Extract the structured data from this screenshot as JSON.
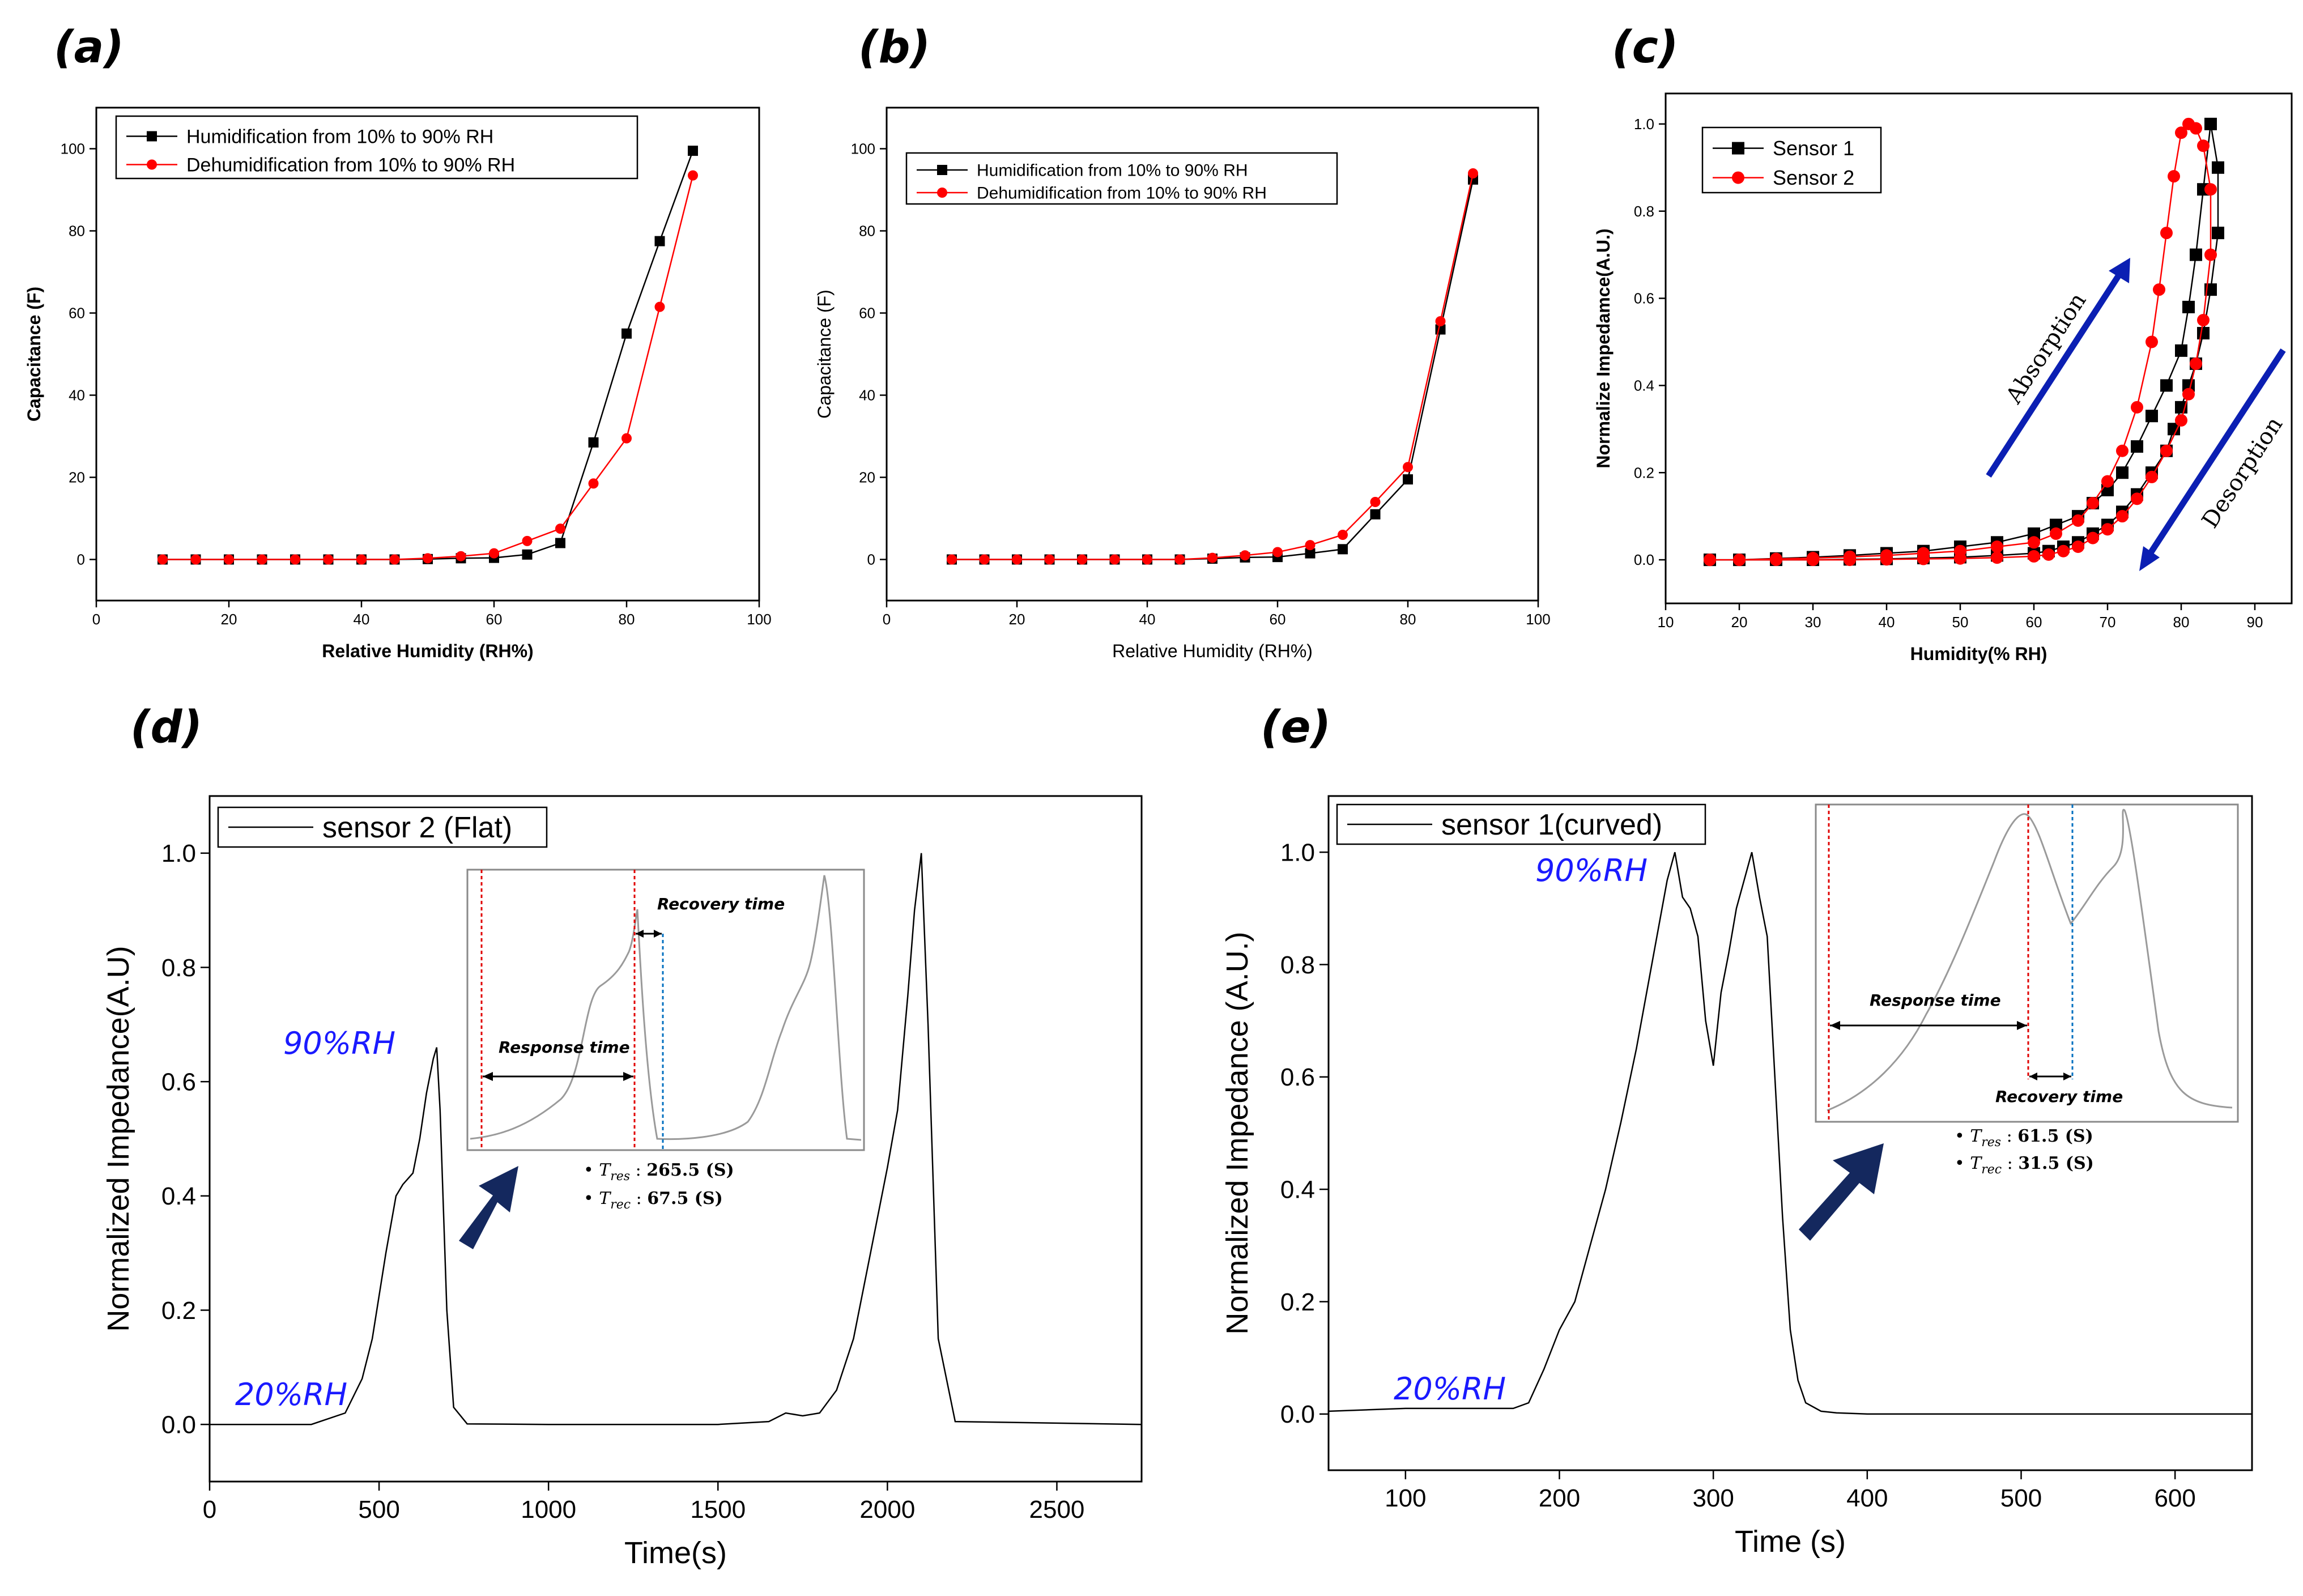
{
  "chart_data": [
    {
      "id": "a",
      "panel_label": "(a)",
      "type": "line",
      "xlabel": "Relative Humidity (RH%)",
      "ylabel": "Capacitance (F)",
      "xlim": [
        0,
        100
      ],
      "ylim": [
        -10,
        110
      ],
      "xticks": [
        "0",
        "20",
        "40",
        "60",
        "80",
        "100"
      ],
      "yticks": [
        "0",
        "20",
        "40",
        "60",
        "80",
        "100"
      ],
      "x": [
        10,
        15,
        20,
        25,
        30,
        35,
        40,
        45,
        50,
        55,
        60,
        65,
        70,
        75,
        80,
        85,
        90
      ],
      "series": [
        {
          "name": "Humidification from 10% to 90% RH",
          "color": "#000000",
          "marker": "square",
          "values": [
            0,
            0,
            0,
            0,
            0,
            0,
            0,
            0,
            0.1,
            0.3,
            0.4,
            1.2,
            4,
            28.5,
            55,
            77.5,
            99.5
          ]
        },
        {
          "name": "Dehumidification from 10% to 90% RH",
          "color": "#ff0000",
          "marker": "circle",
          "values": [
            0,
            0,
            0,
            0,
            0,
            0,
            0,
            0,
            0.3,
            0.8,
            1.5,
            4.5,
            7.5,
            18.5,
            29.5,
            61.5,
            93.5
          ]
        }
      ]
    },
    {
      "id": "b",
      "panel_label": "(b)",
      "type": "line",
      "xlabel": "Relative Humidity (RH%)",
      "ylabel": "Capacitance (F)",
      "xlim": [
        0,
        100
      ],
      "ylim": [
        -10,
        110
      ],
      "xticks": [
        "0",
        "20",
        "40",
        "60",
        "80",
        "100"
      ],
      "yticks": [
        "0",
        "20",
        "40",
        "60",
        "80",
        "100"
      ],
      "x": [
        10,
        15,
        20,
        25,
        30,
        35,
        40,
        45,
        50,
        55,
        60,
        65,
        70,
        75,
        80,
        85,
        90
      ],
      "series": [
        {
          "name": "Humidification from 10% to 90% RH",
          "color": "#000000",
          "marker": "square",
          "values": [
            0,
            0,
            0,
            0,
            0,
            0,
            0,
            0,
            0.2,
            0.5,
            0.6,
            1.5,
            2.5,
            11,
            19.5,
            56,
            92.5
          ]
        },
        {
          "name": "Dehumidification from 10% to 90% RH",
          "color": "#ff0000",
          "marker": "circle",
          "values": [
            0,
            0,
            0,
            0,
            0,
            0,
            0,
            0,
            0.4,
            1,
            1.8,
            3.5,
            6,
            14,
            22.5,
            58,
            94
          ]
        }
      ]
    },
    {
      "id": "c",
      "panel_label": "(c)",
      "type": "scatter",
      "xlabel": "Humidity(% RH)",
      "ylabel": "Normalize Impedamce(A.U.)",
      "xlim": [
        10,
        95
      ],
      "ylim": [
        -0.1,
        1.07
      ],
      "xticks": [
        "10",
        "20",
        "30",
        "40",
        "50",
        "60",
        "70",
        "80",
        "90"
      ],
      "yticks": [
        "0.0",
        "0.2",
        "0.4",
        "0.6",
        "0.8",
        "1.0"
      ],
      "series": [
        {
          "name": "Sensor 1",
          "color": "#000000",
          "marker": "square",
          "x": [
            16,
            20,
            25,
            30,
            35,
            40,
            45,
            50,
            55,
            60,
            63,
            66,
            68,
            70,
            72,
            74,
            76,
            78,
            80,
            81,
            82,
            83,
            84,
            85,
            85,
            84,
            83,
            82,
            81,
            80,
            79,
            78,
            76,
            74,
            72,
            70,
            68,
            66,
            64,
            62,
            60,
            55,
            50,
            45,
            40,
            35,
            30,
            25,
            20,
            16
          ],
          "y": [
            0,
            0,
            0.003,
            0.006,
            0.01,
            0.015,
            0.02,
            0.03,
            0.04,
            0.06,
            0.08,
            0.1,
            0.13,
            0.16,
            0.2,
            0.26,
            0.33,
            0.4,
            0.48,
            0.58,
            0.7,
            0.85,
            1.0,
            0.9,
            0.75,
            0.62,
            0.52,
            0.45,
            0.4,
            0.35,
            0.3,
            0.25,
            0.2,
            0.15,
            0.11,
            0.08,
            0.06,
            0.04,
            0.03,
            0.02,
            0.015,
            0.01,
            0.006,
            0.004,
            0.002,
            0.001,
            0,
            0,
            0,
            0
          ]
        },
        {
          "name": "Sensor 2",
          "color": "#ff0000",
          "marker": "circle",
          "x": [
            16,
            20,
            25,
            30,
            35,
            40,
            45,
            50,
            55,
            60,
            63,
            66,
            68,
            70,
            72,
            74,
            76,
            77,
            78,
            79,
            80,
            81,
            82,
            83,
            84,
            84,
            83,
            82,
            81,
            80,
            78,
            76,
            74,
            72,
            70,
            68,
            66,
            64,
            62,
            60,
            55,
            50,
            45,
            40,
            35,
            30,
            25,
            20,
            16
          ],
          "y": [
            0,
            0,
            0.002,
            0.004,
            0.007,
            0.01,
            0.015,
            0.02,
            0.03,
            0.04,
            0.06,
            0.09,
            0.13,
            0.18,
            0.25,
            0.35,
            0.5,
            0.62,
            0.75,
            0.88,
            0.98,
            1.0,
            0.99,
            0.95,
            0.85,
            0.7,
            0.55,
            0.45,
            0.38,
            0.32,
            0.25,
            0.19,
            0.14,
            0.1,
            0.07,
            0.05,
            0.03,
            0.02,
            0.012,
            0.008,
            0.005,
            0.003,
            0.002,
            0.001,
            0,
            0,
            0,
            0,
            0
          ]
        }
      ],
      "annotations": {
        "absorption": "Absorption",
        "desorption": "Desorption"
      }
    },
    {
      "id": "d",
      "panel_label": "(d)",
      "type": "line",
      "xlabel": "Time(s)",
      "ylabel": "Normalized Impedance(A.U)",
      "xlim": [
        0,
        2750
      ],
      "ylim": [
        -0.1,
        1.1
      ],
      "xticks": [
        "0",
        "500",
        "1000",
        "1500",
        "2000",
        "2500"
      ],
      "yticks": [
        "0.0",
        "0.2",
        "0.4",
        "0.6",
        "0.8",
        "1.0"
      ],
      "series": [
        {
          "name": "sensor 2 (Flat)",
          "color": "#000000",
          "x": [
            0,
            300,
            400,
            450,
            480,
            520,
            550,
            570,
            600,
            620,
            640,
            660,
            670,
            680,
            700,
            720,
            760,
            1000,
            1500,
            1650,
            1700,
            1750,
            1800,
            1850,
            1900,
            1950,
            2000,
            2030,
            2060,
            2080,
            2100,
            2120,
            2150,
            2200,
            2750
          ],
          "y": [
            0,
            0,
            0.02,
            0.08,
            0.15,
            0.3,
            0.4,
            0.42,
            0.44,
            0.5,
            0.58,
            0.64,
            0.66,
            0.55,
            0.2,
            0.03,
            0.001,
            0,
            0,
            0.005,
            0.02,
            0.015,
            0.02,
            0.06,
            0.15,
            0.3,
            0.45,
            0.55,
            0.75,
            0.9,
            1.0,
            0.7,
            0.15,
            0.005,
            0
          ]
        }
      ],
      "annotations": {
        "high": "90%RH",
        "low": "20%RH",
        "inset": {
          "response": "Response time",
          "recovery": "Recovery time",
          "tres": "265.5 (S)",
          "trec": "67.5 (S)"
        }
      }
    },
    {
      "id": "e",
      "panel_label": "(e)",
      "type": "line",
      "xlabel": "Time (s)",
      "ylabel": "Normalized Impedance (A.U.)",
      "xlim": [
        50,
        650
      ],
      "ylim": [
        -0.1,
        1.1
      ],
      "xticks": [
        "100",
        "200",
        "300",
        "400",
        "500",
        "600"
      ],
      "yticks": [
        "0.0",
        "0.2",
        "0.4",
        "0.6",
        "0.8",
        "1.0"
      ],
      "series": [
        {
          "name": "sensor 1(curved)",
          "color": "#000000",
          "x": [
            50,
            100,
            170,
            180,
            190,
            200,
            210,
            220,
            230,
            240,
            250,
            260,
            270,
            275,
            280,
            285,
            290,
            295,
            300,
            305,
            310,
            315,
            320,
            325,
            330,
            335,
            340,
            345,
            350,
            355,
            360,
            370,
            380,
            400,
            650
          ],
          "y": [
            0.005,
            0.01,
            0.01,
            0.02,
            0.08,
            0.15,
            0.2,
            0.3,
            0.4,
            0.52,
            0.65,
            0.8,
            0.95,
            1.0,
            0.92,
            0.9,
            0.85,
            0.7,
            0.62,
            0.75,
            0.82,
            0.9,
            0.95,
            1.0,
            0.92,
            0.85,
            0.6,
            0.35,
            0.15,
            0.06,
            0.02,
            0.005,
            0.002,
            0,
            0
          ]
        }
      ],
      "annotations": {
        "high": "90%RH",
        "low": "20%RH",
        "inset": {
          "response": "Response time",
          "recovery": "Recovery time",
          "tres": "61.5 (S)",
          "trec": "31.5 (S)"
        }
      }
    }
  ],
  "math_labels": {
    "tres_sub": "res",
    "trec_sub": "rec",
    "T": "T"
  }
}
